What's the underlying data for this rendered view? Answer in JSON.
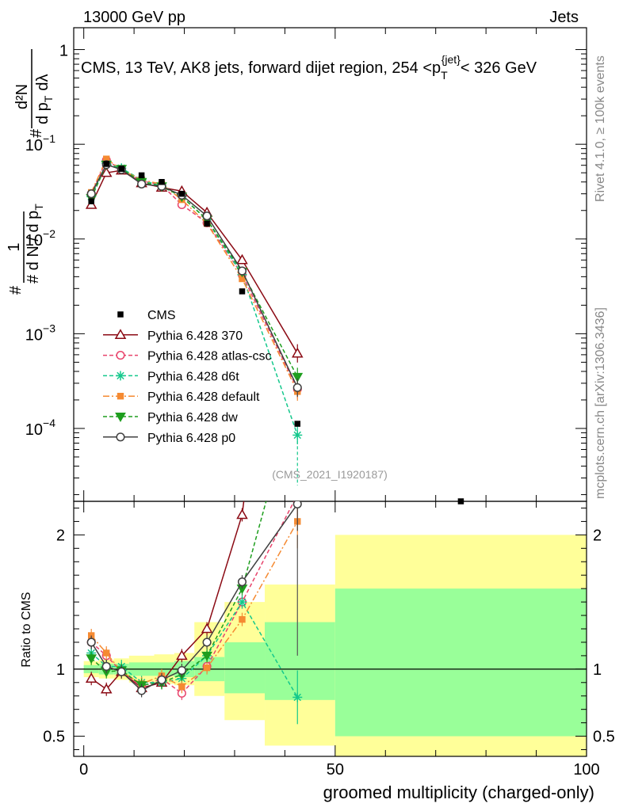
{
  "header": {
    "left": "13000 GeV pp",
    "right": "Jets"
  },
  "side": {
    "rivet": "Rivet 4.1.0, ≥ 100k events",
    "mcplots": "mcplots.cern.ch [arXiv:1306.3436]"
  },
  "chart_data": {
    "type": "line",
    "title": "CMS, 13 TeV, AK8 jets, forward dijet region, 254 <p_T^{jet}< 326 GeV",
    "title_parts": {
      "a": "CMS, 13 TeV, AK8 jets, forward dijet region, 254 <p",
      "sub": "T",
      "sup": "{jet}",
      "b": "< 326 GeV"
    },
    "analysis_label": "(CMS_2021_I1920187)",
    "xlabel": "groomed multiplicity (charged-only)",
    "ylabel_ratio": "Ratio to CMS",
    "ylabel_main": {
      "frac_top": "1",
      "frac_bottom": "# d N / d p",
      "frac_bottom_sub": "T",
      "hash": "#",
      "d2_num": "d²N",
      "d2_den_a": "d p",
      "d2_den_sub": "T",
      "d2_den_b": "dλ"
    },
    "x_ticks": [
      0,
      50,
      100
    ],
    "xlim": [
      -2,
      100
    ],
    "main_ylim": [
      1.7e-05,
      1.7
    ],
    "main_yticks": [
      {
        "value": 1,
        "base": "1",
        "exp": ""
      },
      {
        "value": 0.1,
        "base": "10",
        "exp": "−1"
      },
      {
        "value": 0.01,
        "base": "10",
        "exp": "−2"
      },
      {
        "value": 0.001,
        "base": "10",
        "exp": "−3"
      },
      {
        "value": 0.0001,
        "base": "10",
        "exp": "−4"
      }
    ],
    "ratio_ylim": [
      0.35,
      2.25
    ],
    "ratio_yticks": [
      "0.5",
      "1",
      "2"
    ],
    "bins": [
      0,
      3,
      6,
      9,
      14,
      18,
      22,
      28,
      36,
      50,
      100
    ],
    "band_inner": [
      [
        0.97,
        1.03
      ],
      [
        0.96,
        1.04
      ],
      [
        0.96,
        1.04
      ],
      [
        0.95,
        1.05
      ],
      [
        0.95,
        1.05
      ],
      [
        0.94,
        1.06
      ],
      [
        0.91,
        1.09
      ],
      [
        0.82,
        1.2
      ],
      [
        0.77,
        1.35
      ],
      [
        0.5,
        1.6
      ]
    ],
    "band_outer": [
      [
        0.94,
        1.06
      ],
      [
        0.93,
        1.07
      ],
      [
        0.92,
        1.08
      ],
      [
        0.9,
        1.1
      ],
      [
        0.89,
        1.11
      ],
      [
        0.88,
        1.12
      ],
      [
        0.8,
        1.35
      ],
      [
        0.62,
        1.5
      ],
      [
        0.43,
        1.63
      ],
      [
        0.3,
        2.0
      ]
    ],
    "cms": {
      "name": "CMS",
      "x": [
        1.5,
        4.5,
        7.5,
        11.5,
        15.5,
        19.5,
        24.5,
        31.5,
        42.5,
        75
      ],
      "y": [
        0.025,
        0.062,
        0.055,
        0.047,
        0.04,
        0.03,
        0.0145,
        0.0028,
        0.000112,
        1.6e-05
      ]
    },
    "series": [
      {
        "name": "Pythia 6.428 370",
        "color": "#8b0a14",
        "dash": "",
        "marker": "triangle-open",
        "x": [
          1.5,
          4.5,
          7.5,
          11.5,
          15.5,
          19.5,
          24.5,
          31.5,
          42.5
        ],
        "y": [
          0.023,
          0.05,
          0.053,
          0.039,
          0.035,
          0.032,
          0.019,
          0.006,
          0.00062
        ],
        "ratio": [
          0.93,
          0.85,
          0.98,
          0.86,
          0.9,
          1.1,
          1.3,
          2.15,
          5.5
        ]
      },
      {
        "name": "Pythia 6.428 atlas-csc",
        "color": "#e8436b",
        "dash": "5,3",
        "marker": "circle-open",
        "x": [
          1.5,
          4.5,
          7.5,
          11.5,
          15.5,
          19.5,
          24.5,
          31.5,
          42.5
        ],
        "y": [
          0.03,
          0.068,
          0.054,
          0.041,
          0.037,
          0.023,
          0.0148,
          0.0042,
          0.00026
        ],
        "ratio": [
          1.2,
          1.1,
          0.98,
          0.87,
          0.93,
          0.82,
          1.02,
          1.5,
          2.3
        ]
      },
      {
        "name": "Pythia 6.428 d6t",
        "color": "#14c88c",
        "dash": "5,3",
        "marker": "star",
        "x": [
          1.5,
          4.5,
          7.5,
          11.5,
          15.5,
          19.5,
          24.5,
          31.5,
          42.5
        ],
        "y": [
          0.028,
          0.063,
          0.056,
          0.042,
          0.036,
          0.028,
          0.016,
          0.0042,
          8.5e-05
        ],
        "ratio": [
          1.12,
          1.02,
          1.02,
          0.9,
          0.9,
          0.93,
          1.1,
          1.5,
          0.79
        ]
      },
      {
        "name": "Pythia 6.428 default",
        "color": "#f58a32",
        "dash": "8,3,2,3",
        "marker": "square",
        "x": [
          1.5,
          4.5,
          7.5,
          11.5,
          15.5,
          19.5,
          24.5,
          31.5,
          42.5
        ],
        "y": [
          0.031,
          0.07,
          0.054,
          0.042,
          0.038,
          0.026,
          0.0146,
          0.0038,
          0.000245
        ],
        "ratio": [
          1.25,
          1.12,
          0.98,
          0.89,
          0.95,
          0.87,
          1.01,
          1.37,
          2.1
        ]
      },
      {
        "name": "Pythia 6.428 dw",
        "color": "#1e9e1e",
        "dash": "5,3",
        "marker": "triangle-down",
        "x": [
          1.5,
          4.5,
          7.5,
          11.5,
          15.5,
          19.5,
          24.5,
          31.5,
          42.5
        ],
        "y": [
          0.027,
          0.061,
          0.055,
          0.04,
          0.036,
          0.028,
          0.016,
          0.0045,
          0.00035
        ],
        "ratio": [
          1.08,
          0.98,
          0.99,
          0.88,
          0.9,
          0.96,
          1.1,
          1.6,
          3.1
        ]
      },
      {
        "name": "Pythia 6.428 p0",
        "color": "#404040",
        "dash": "",
        "marker": "circle-open",
        "x": [
          1.5,
          4.5,
          7.5,
          11.5,
          15.5,
          19.5,
          24.5,
          31.5,
          42.5
        ],
        "y": [
          0.03,
          0.061,
          0.054,
          0.038,
          0.036,
          0.029,
          0.0175,
          0.0046,
          0.00027
        ],
        "ratio": [
          1.2,
          1.02,
          0.98,
          0.84,
          0.92,
          0.99,
          1.2,
          1.65,
          2.23
        ]
      }
    ]
  }
}
